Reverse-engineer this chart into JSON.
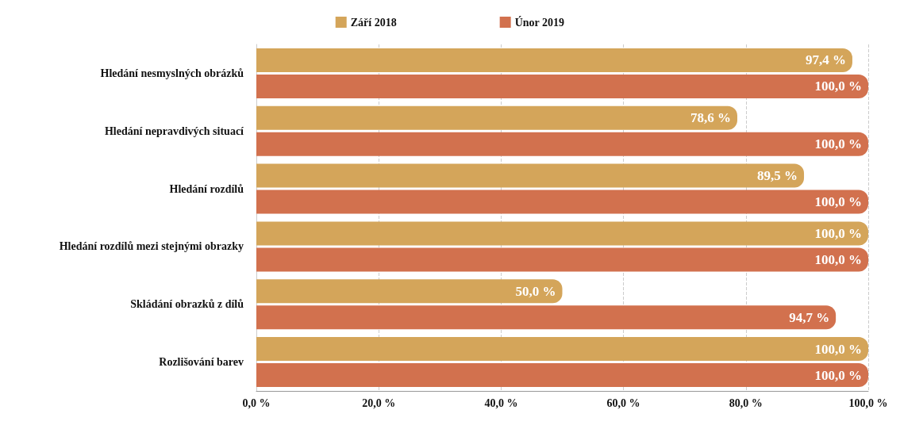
{
  "chart_data": {
    "type": "bar",
    "orientation": "horizontal",
    "categories": [
      "Hledání nesmyslných obrázků",
      "Hledání nepravdivých situací",
      "Hledání rozdílů",
      "Hledání rozdílů mezi stejnými obrazky",
      "Skládání obrazků z dílů",
      "Rozlišování barev"
    ],
    "series": [
      {
        "name": "Září 2018",
        "color": "#d4a55a",
        "values": [
          97.4,
          78.6,
          89.5,
          100,
          50,
          100
        ],
        "value_labels": [
          "97,4 %",
          "78,6 %",
          "89,5 %",
          "100,0 %",
          "50,0 %",
          "100,0 %"
        ]
      },
      {
        "name": "Únor 2019",
        "color": "#d2714e",
        "values": [
          100,
          100,
          100,
          100,
          94.7,
          100
        ],
        "value_labels": [
          "100,0 %",
          "100,0 %",
          "100,0 %",
          "100,0 %",
          "94,7 %",
          "100,0 %"
        ]
      }
    ],
    "xlim": [
      0,
      100
    ],
    "xticks": [
      {
        "value": 0,
        "label": "0,0 %"
      },
      {
        "value": 20,
        "label": "20,0 %"
      },
      {
        "value": 40,
        "label": "40,0 %"
      },
      {
        "value": 60,
        "label": "60,0 %"
      },
      {
        "value": 80,
        "label": "80,0 %"
      },
      {
        "value": 100,
        "label": "100,0 %"
      }
    ],
    "grid": "x",
    "legend": "top"
  }
}
